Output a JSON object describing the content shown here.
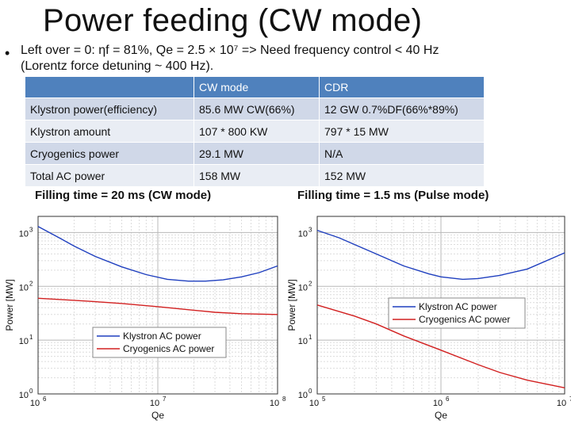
{
  "slide": {
    "title": "Power feeding (CW mode)",
    "bullet_line1": "Left over = 0: ηf = 81%, Qe = 2.5 × 10⁷ => Need frequency control < 40 Hz",
    "bullet_line2": "(Lorentz force detuning ~ 400 Hz)."
  },
  "table": {
    "headers": [
      "",
      "CW mode",
      "CDR"
    ],
    "rows": [
      [
        "Klystron power(efficiency)",
        "85.6 MW CW(66%)",
        "12 GW 0.7%DF(66%*89%)"
      ],
      [
        "Klystron amount",
        "107 * 800 KW",
        "797 * 15 MW"
      ],
      [
        "Cryogenics power",
        "29.1 MW",
        "N/A"
      ],
      [
        "Total AC power",
        "158 MW",
        "152 MW"
      ]
    ]
  },
  "captions": {
    "left": "Filling time = 20 ms (CW mode)",
    "right": "Filling time = 1.5 ms (Pulse mode)"
  },
  "chart_data": [
    {
      "type": "line",
      "xlabel": "Qe",
      "ylabel": "Power [MW]",
      "x_scale": "log",
      "y_scale": "log",
      "xlim": [
        1000000,
        100000000
      ],
      "ylim": [
        1,
        2000
      ],
      "x_ticks": [
        "10^6",
        "10^7",
        "10^8"
      ],
      "y_ticks": [
        "10^0",
        "10^1",
        "10^2",
        "10^3"
      ],
      "legend_position": "lower-left",
      "grid": true,
      "series": [
        {
          "name": "Klystron AC power",
          "color": "#1f3fbf",
          "x": [
            1000000,
            1500000,
            2000000,
            3000000,
            5000000,
            8000000,
            12000000,
            18000000,
            25000000,
            35000000,
            50000000,
            70000000,
            100000000
          ],
          "y": [
            1300,
            800,
            560,
            360,
            230,
            165,
            135,
            125,
            125,
            132,
            150,
            180,
            240
          ]
        },
        {
          "name": "Cryogenics AC power",
          "color": "#d22020",
          "x": [
            1000000,
            2000000,
            3000000,
            5000000,
            10000000,
            20000000,
            30000000,
            50000000,
            100000000
          ],
          "y": [
            60,
            55,
            52,
            48,
            42,
            36,
            33,
            31,
            30
          ]
        }
      ]
    },
    {
      "type": "line",
      "xlabel": "Qe",
      "ylabel": "Power [MW]",
      "x_scale": "log",
      "y_scale": "log",
      "xlim": [
        100000,
        10000000
      ],
      "ylim": [
        1,
        2000
      ],
      "x_ticks": [
        "10^5",
        "10^6",
        "10^7"
      ],
      "y_ticks": [
        "10^0",
        "10^1",
        "10^2",
        "10^3"
      ],
      "legend_position": "center-right",
      "grid": true,
      "series": [
        {
          "name": "Klystron AC power",
          "color": "#1f3fbf",
          "x": [
            100000,
            150000,
            200000,
            300000,
            500000,
            800000,
            1000000,
            1500000,
            2000000,
            3000000,
            5000000,
            10000000
          ],
          "y": [
            1100,
            800,
            600,
            400,
            240,
            170,
            150,
            135,
            140,
            160,
            210,
            420
          ]
        },
        {
          "name": "Cryogenics AC power",
          "color": "#d22020",
          "x": [
            100000,
            200000,
            300000,
            500000,
            1000000,
            2000000,
            3000000,
            5000000,
            10000000
          ],
          "y": [
            45,
            28,
            20,
            12,
            6.5,
            3.5,
            2.5,
            1.8,
            1.3
          ]
        }
      ]
    }
  ]
}
